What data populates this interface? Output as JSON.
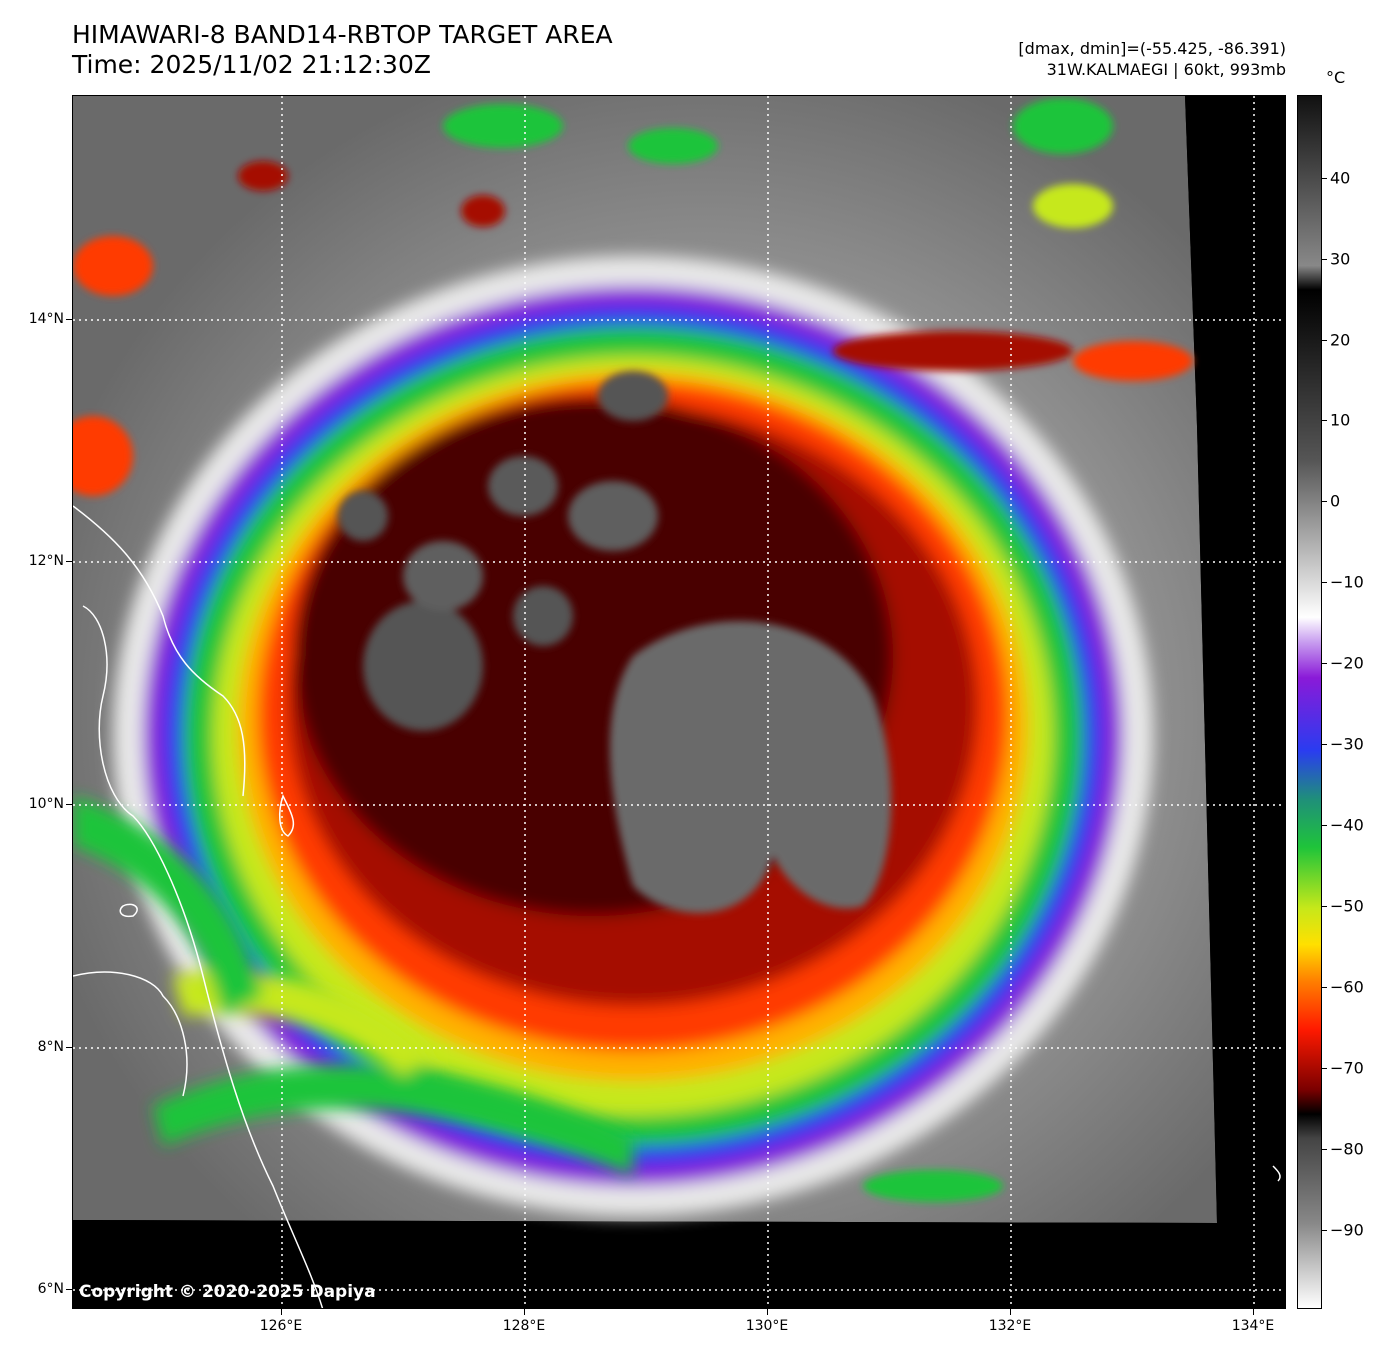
{
  "header": {
    "title_line1": "HIMAWARI-8 BAND14-RBTOP TARGET AREA",
    "title_line2": "Time: 2025/11/02 21:12:30Z",
    "dmax_dmin": "[dmax, dmin]=(-55.425, -86.391)",
    "storm_info": "31W.KALMAEGI | 60kt, 993mb"
  },
  "map": {
    "lat_labels": [
      "14°N",
      "12°N",
      "10°N",
      "8°N",
      "6°N"
    ],
    "lon_labels": [
      "126°E",
      "128°E",
      "130°E",
      "132°E",
      "134°E"
    ],
    "copyright": "Copyright © 2020-2025 Dapiya"
  },
  "colorbar": {
    "unit": "°C",
    "ticks": [
      "40",
      "30",
      "20",
      "10",
      "0",
      "−10",
      "−20",
      "−30",
      "−40",
      "−50",
      "−60",
      "−70",
      "−80",
      "−90"
    ]
  }
}
